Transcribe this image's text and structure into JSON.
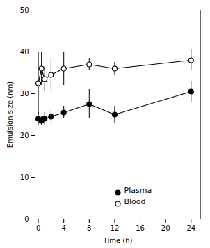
{
  "chart_data": {
    "type": "line",
    "xlabel": "Time (h)",
    "ylabel": "Emulsion size (nm)",
    "x": [
      0,
      0.5,
      1,
      2,
      4,
      8,
      12,
      24
    ],
    "series": [
      {
        "name": "Plasma",
        "color": "#000000",
        "marker": "filled_circle",
        "line_style": "solid",
        "values": [
          24.0,
          23.5,
          24.0,
          24.5,
          25.5,
          27.5,
          25.0,
          30.5
        ],
        "yerr": [
          1.5,
          1.0,
          1.5,
          1.5,
          1.5,
          3.5,
          2.0,
          2.5
        ]
      },
      {
        "name": "Blood",
        "color": "#000000",
        "marker": "open_circle",
        "line_style": "solid",
        "values": [
          32.5,
          36.0,
          33.5,
          34.5,
          36.0,
          37.0,
          36.0,
          38.0
        ],
        "yerr": [
          7.5,
          4.0,
          3.0,
          4.0,
          4.0,
          1.5,
          1.5,
          2.5
        ]
      }
    ],
    "xlim": [
      -0.5,
      25.5
    ],
    "ylim": [
      0,
      50
    ],
    "xticks": [
      0,
      4,
      8,
      12,
      16,
      20,
      24
    ],
    "yticks": [
      0,
      10,
      20,
      30,
      40,
      50
    ],
    "grid": false,
    "legend": "lower center"
  }
}
